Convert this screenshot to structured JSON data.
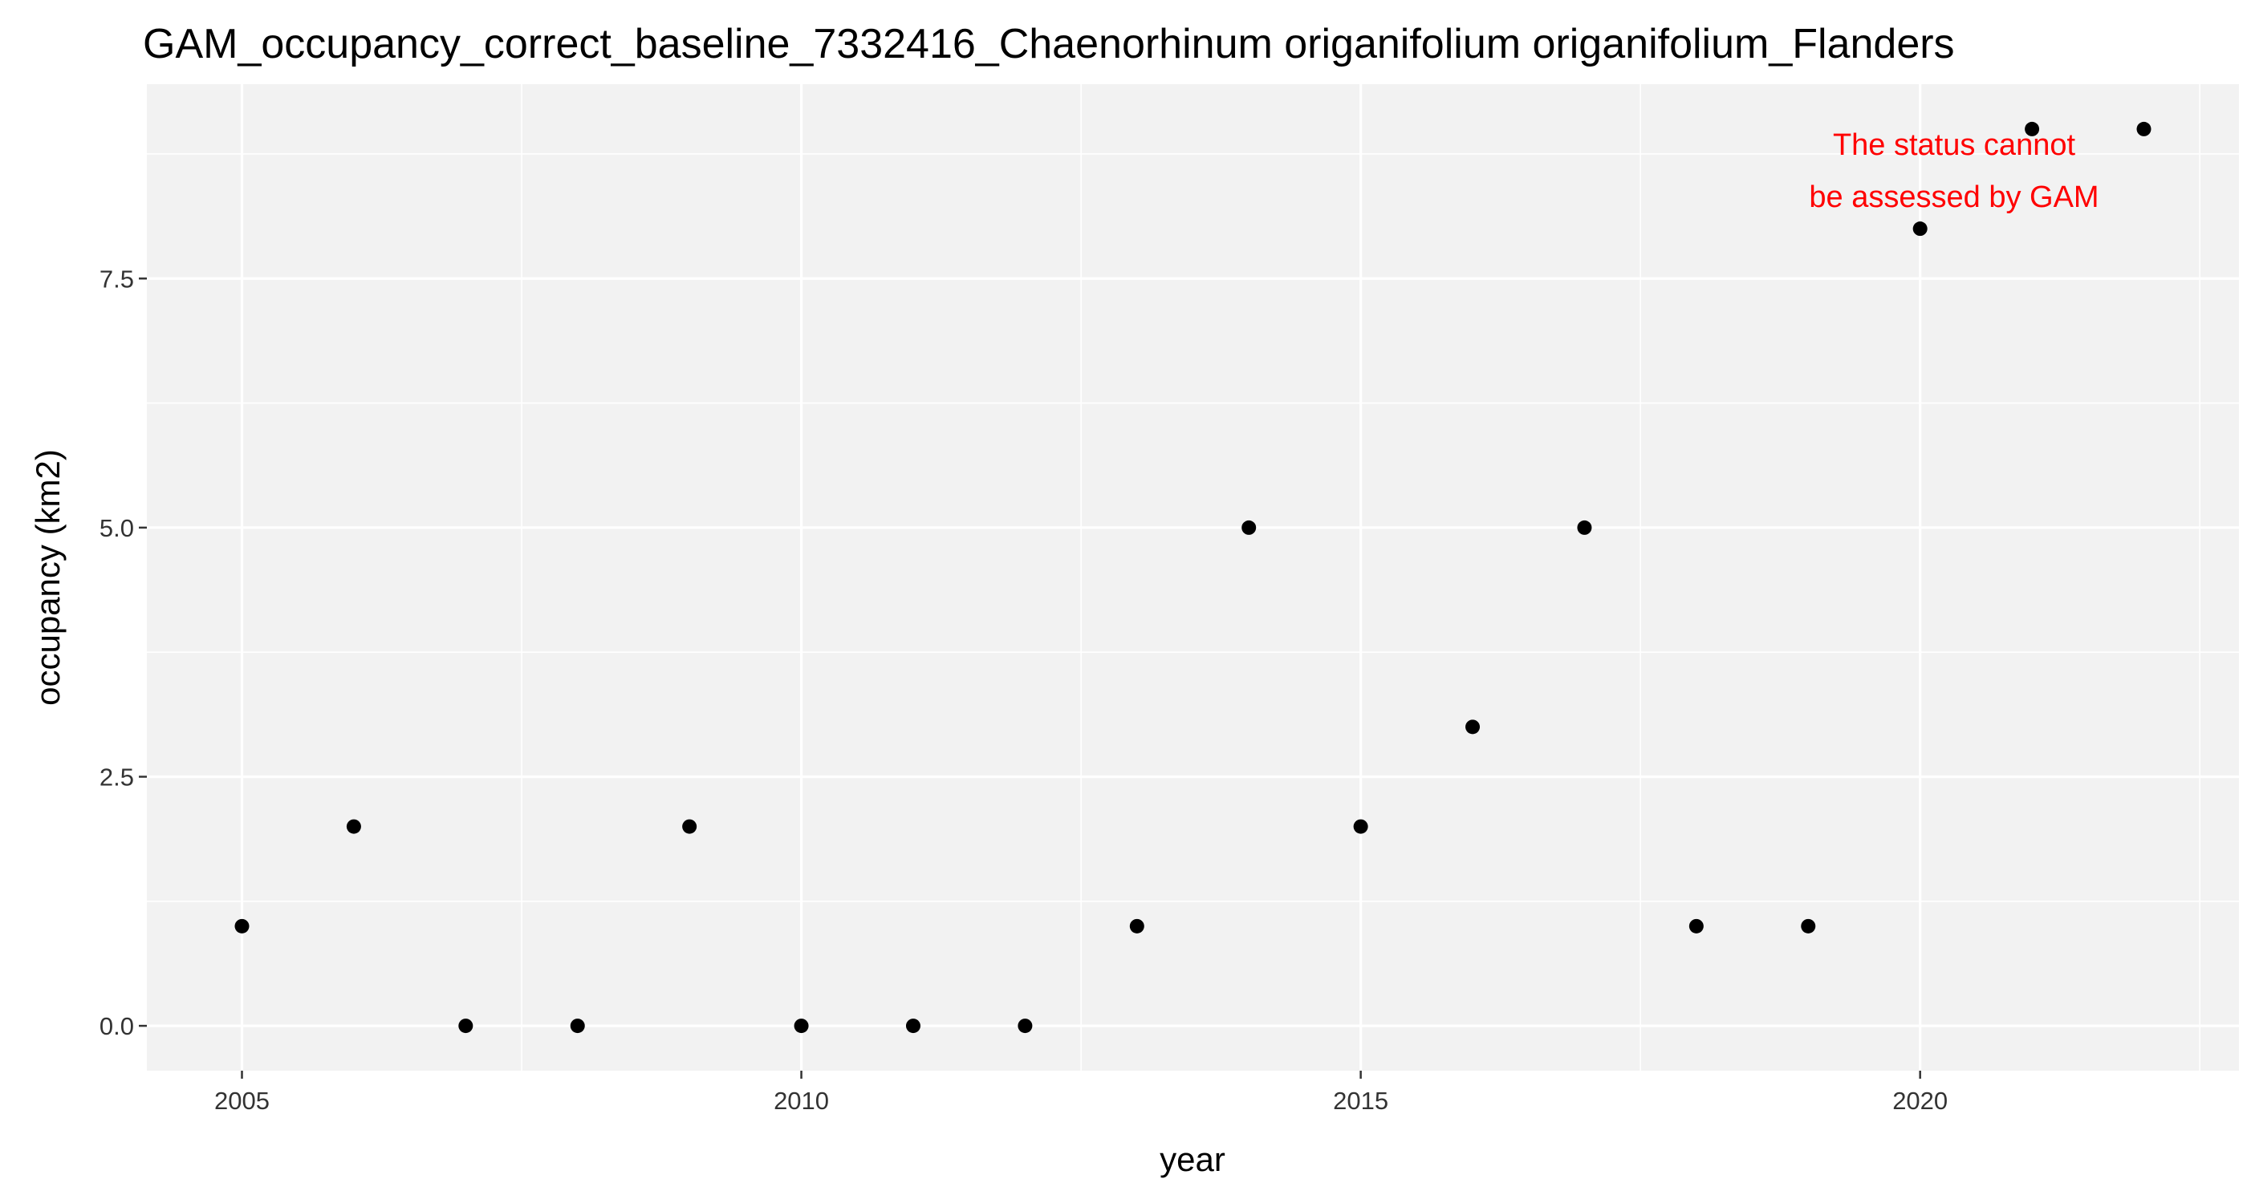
{
  "chart_data": {
    "type": "scatter",
    "title": "GAM_occupancy_correct_baseline_7332416_Chaenorhinum origanifolium origanifolium_Flanders",
    "xlabel": "year",
    "ylabel": "occupancy (km2)",
    "xlim": [
      2004.15,
      2022.85
    ],
    "ylim": [
      -0.45,
      9.45
    ],
    "x_ticks": [
      2005,
      2010,
      2015,
      2020
    ],
    "x_tick_labels": [
      "2005",
      "2010",
      "2015",
      "2020"
    ],
    "y_ticks": [
      0,
      2.5,
      5,
      7.5
    ],
    "y_tick_labels": [
      "0.0",
      "2.5",
      "5.0",
      "7.5"
    ],
    "grid": true,
    "points": [
      {
        "x": 2005,
        "y": 1
      },
      {
        "x": 2006,
        "y": 2
      },
      {
        "x": 2007,
        "y": 0
      },
      {
        "x": 2008,
        "y": 0
      },
      {
        "x": 2009,
        "y": 2
      },
      {
        "x": 2010,
        "y": 0
      },
      {
        "x": 2011,
        "y": 0
      },
      {
        "x": 2012,
        "y": 0
      },
      {
        "x": 2013,
        "y": 1
      },
      {
        "x": 2014,
        "y": 5
      },
      {
        "x": 2015,
        "y": 2
      },
      {
        "x": 2016,
        "y": 3
      },
      {
        "x": 2017,
        "y": 5
      },
      {
        "x": 2018,
        "y": 1
      },
      {
        "x": 2019,
        "y": 1
      },
      {
        "x": 2020,
        "y": 8
      },
      {
        "x": 2021,
        "y": 9
      },
      {
        "x": 2022,
        "y": 9
      }
    ],
    "annotation": {
      "lines": [
        "The status cannot",
        "be assessed by GAM"
      ],
      "color": "#ff0000"
    },
    "colors": {
      "panel": "#f2f2f2",
      "grid": "#ffffff",
      "point": "#000000"
    }
  }
}
